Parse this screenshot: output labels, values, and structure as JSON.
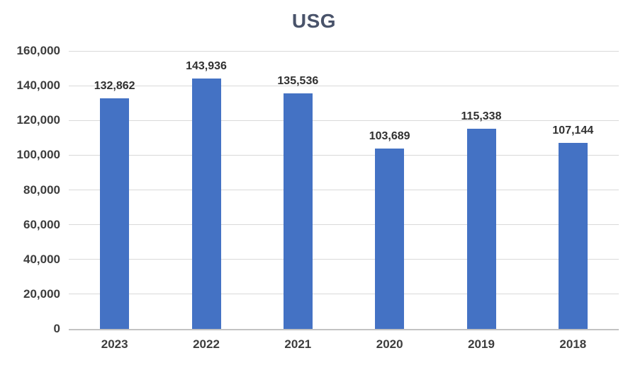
{
  "chart_data": {
    "type": "bar",
    "title": "USG",
    "categories": [
      "2023",
      "2022",
      "2021",
      "2020",
      "2019",
      "2018"
    ],
    "values": [
      132862,
      143936,
      135536,
      103689,
      115338,
      107144
    ],
    "value_labels": [
      "132,862",
      "143,936",
      "135,536",
      "103,689",
      "115,338",
      "107,144"
    ],
    "xlabel": "",
    "ylabel": "",
    "ylim": [
      0,
      160000
    ],
    "yticks": [
      0,
      20000,
      40000,
      60000,
      80000,
      100000,
      120000,
      140000,
      160000
    ],
    "ytick_labels": [
      "0",
      "20,000",
      "40,000",
      "60,000",
      "80,000",
      "100,000",
      "120,000",
      "140,000",
      "160,000"
    ],
    "grid": true,
    "legend": false,
    "bar_color": "#4472C4",
    "gridline_color": "#D9D9D9",
    "axis_line_color": "#C3C3C3",
    "title_color": "#49536A",
    "label_color": "#3D3D3D"
  }
}
